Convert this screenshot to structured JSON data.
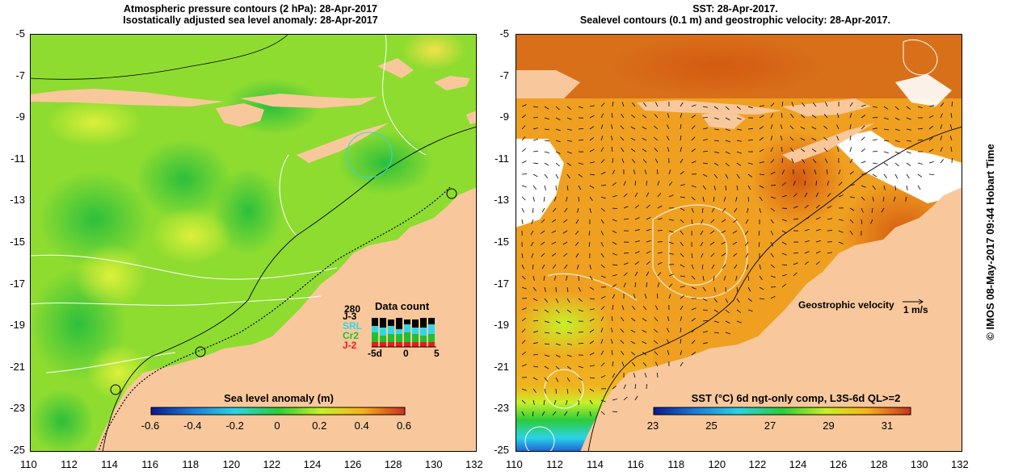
{
  "left_panel": {
    "title_line1": "Atmospheric pressure contours (2 hPa): 28-Apr-2017",
    "title_line2": "Isostatically adjusted sea level anomaly: 28-Apr-2017",
    "colorbar_label": "Sea level anomaly (m)",
    "colorbar_ticks": [
      "-0.6",
      "-0.4",
      "-0.2",
      "0",
      "0.2",
      "0.4",
      "0.6"
    ],
    "colorbar_colors": [
      "#0a1a8c",
      "#1f7fd6",
      "#2bd3e6",
      "#2ccc3a",
      "#c8f028",
      "#f5b21e",
      "#c8321e"
    ],
    "data_count": {
      "title": "Data count",
      "max_label": "280",
      "satellites": [
        {
          "name": "J-3",
          "color": "#000000"
        },
        {
          "name": "SRL",
          "color": "#33d6e6"
        },
        {
          "name": "Cr2",
          "color": "#22c030"
        },
        {
          "name": "J-2",
          "color": "#ee1a1a"
        }
      ],
      "x_ticks": [
        "-5d",
        "0",
        "5"
      ]
    }
  },
  "right_panel": {
    "title_line1": "SST: 28-Apr-2017.",
    "title_line2": "Sealevel contours (0.1 m) and geostrophic velocity: 28-Apr-2017.",
    "velocity_legend": "Geostrophic velocity",
    "velocity_unit": "1 m/s",
    "colorbar_label": "SST (°C) 6d ngt-only comp, L3S-6d QL>=2",
    "colorbar_ticks": [
      "23",
      "25",
      "27",
      "29",
      "31"
    ],
    "colorbar_colors": [
      "#0a1a8c",
      "#1f7fd6",
      "#2bd3e6",
      "#2ccc3a",
      "#c8f028",
      "#f5b21e",
      "#c8321e"
    ]
  },
  "axes": {
    "lat_ticks": [
      "-5",
      "-7",
      "-9",
      "-11",
      "-13",
      "-15",
      "-17",
      "-19",
      "-21",
      "-23",
      "-25"
    ],
    "lon_ticks": [
      "110",
      "112",
      "114",
      "116",
      "118",
      "120",
      "122",
      "124",
      "126",
      "128",
      "130",
      "132"
    ]
  },
  "credit": "© IMOS 08-May-2017 09:44 Hobart Time",
  "colors": {
    "land": "#f8c89c",
    "ocean_sla": "#8edc30",
    "ocean_sst": "#f0a020"
  }
}
